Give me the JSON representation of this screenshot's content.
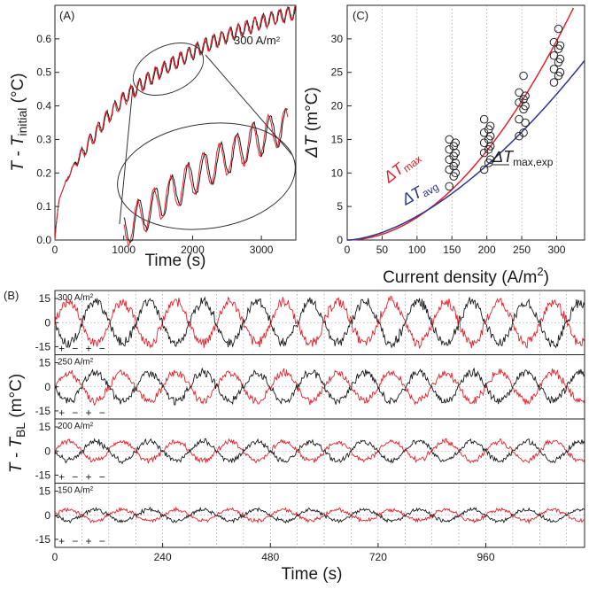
{
  "colors": {
    "red": "#e3232c",
    "black": "#1a1a1a",
    "blue": "#2b3590"
  },
  "chart_data": [
    {
      "panel": "(A)",
      "type": "line",
      "xlabel": "Time (s)",
      "ylabel_main": "T - T",
      "ylabel_sub": "initial",
      "ylabel_unit": " (°C)",
      "annotation": "300 A/m²",
      "xlim": [
        0,
        3500
      ],
      "ylim": [
        0,
        0.7
      ],
      "xticks": [
        "0",
        "1000",
        "2000",
        "3000"
      ],
      "yticks": [
        "0.0",
        "0.1",
        "0.2",
        "0.3",
        "0.4",
        "0.5",
        "0.6"
      ],
      "xtick_values": [
        0,
        1000,
        2000,
        3000
      ],
      "ytick_values": [
        0,
        0.1,
        0.2,
        0.3,
        0.4,
        0.5,
        0.6
      ],
      "trend": {
        "x": [
          0,
          20,
          60,
          150,
          300,
          500,
          700,
          900,
          1100,
          1500,
          2000,
          2500,
          3000,
          3500
        ],
        "y": [
          0,
          0.05,
          0.12,
          0.17,
          0.23,
          0.29,
          0.35,
          0.4,
          0.44,
          0.5,
          0.56,
          0.61,
          0.65,
          0.68
        ]
      },
      "oscillation_amplitude": 0.02,
      "oscillation_period_s": 120,
      "series": [
        {
          "color": "#1a1a1a"
        },
        {
          "color": "#e3232c"
        }
      ]
    },
    {
      "panel": "(C)",
      "type": "scatter",
      "xlabel": "Current density (A/m²)",
      "xlabel_main": "Current density (A/m",
      "xlabel_sup": "2",
      "xlabel_end": ")",
      "ylabel_main": "ΔT",
      "ylabel_unit": " (m°C)",
      "xlim": [
        0,
        340
      ],
      "ylim": [
        0,
        35
      ],
      "xticks": [
        "0",
        "50",
        "100",
        "150",
        "200",
        "250",
        "300"
      ],
      "yticks": [
        "0",
        "5",
        "10",
        "15",
        "20",
        "25",
        "30"
      ],
      "xtick_values": [
        0,
        50,
        100,
        150,
        200,
        250,
        300
      ],
      "ytick_values": [
        0,
        5,
        10,
        15,
        20,
        25,
        30
      ],
      "curves": [
        {
          "label_main": "ΔT",
          "label_sub": "max",
          "color": "#e3232c",
          "coefficient": 0.00037,
          "exponent": 1.98
        },
        {
          "label_main": "ΔT",
          "label_sub": "avg",
          "color": "#2b3590",
          "coefficient": 0.00178,
          "exponent": 1.65
        }
      ],
      "points_label_main": "ΔT",
      "points_label_sub": "max,exp",
      "points": [
        {
          "x": 150,
          "y": [
            8,
            9.5,
            10,
            10.5,
            11,
            11.5,
            12,
            12.5,
            13,
            13.5,
            14,
            14.5,
            15
          ]
        },
        {
          "x": 200,
          "y": [
            10.5,
            11.5,
            12,
            13,
            13.5,
            14,
            14.5,
            15,
            15.5,
            16,
            16.5,
            17,
            18
          ]
        },
        {
          "x": 250,
          "y": [
            15.5,
            16,
            17.5,
            18,
            19.5,
            20,
            20.5,
            21,
            21.5,
            22,
            24.5
          ]
        },
        {
          "x": 300,
          "y": [
            23.5,
            24.5,
            25,
            25.5,
            26.5,
            27,
            27.5,
            28.5,
            29,
            29.5,
            31.5
          ]
        }
      ]
    },
    {
      "panel": "(B)",
      "type": "line",
      "xlabel": "Time (s)",
      "ylabel_main": "T - T",
      "ylabel_sub": "BL",
      "ylabel_unit": " (m°C)",
      "xlim": [
        0,
        1180
      ],
      "xticks": [
        "0",
        "240",
        "480",
        "720",
        "960"
      ],
      "xtick_values": [
        0,
        240,
        480,
        720,
        960
      ],
      "ylim": [
        -20,
        20
      ],
      "yticks": [
        "15",
        "0",
        "-15"
      ],
      "ytick_values": [
        15,
        0,
        -15
      ],
      "period_s": 120,
      "polarity_marks": [
        "+",
        "−",
        "+",
        "−"
      ],
      "subpanels": [
        {
          "label": "300 A/m²",
          "amplitude": 13
        },
        {
          "label": "250 A/m²",
          "amplitude": 9
        },
        {
          "label": "200 A/m²",
          "amplitude": 6
        },
        {
          "label": "150 A/m²",
          "amplitude": 3.5
        }
      ]
    }
  ]
}
